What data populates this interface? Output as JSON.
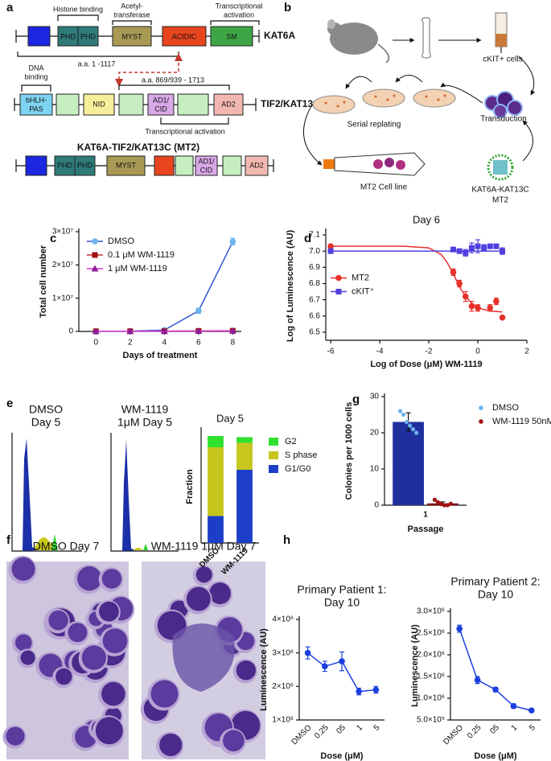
{
  "panel_labels": [
    "a",
    "b",
    "c",
    "d",
    "e",
    "f",
    "g",
    "h"
  ],
  "kat6a": {
    "name": "KAT6A",
    "domains": [
      "PHD",
      "PHD",
      "MYST",
      "ACIDIC",
      "SM"
    ],
    "histone": "Histone binding",
    "acetyl": [
      "Acetyl-",
      "transferase"
    ],
    "activation": [
      "Transcriptional",
      "activation"
    ],
    "range": "a.a. 1 -1117"
  },
  "tif2": {
    "name": "TIF2/KAT13C",
    "dna": [
      "DNA",
      "binding"
    ],
    "bhlh": [
      "bHLH-",
      "PAS"
    ],
    "nid": "NID",
    "ad1": [
      "AD1/",
      "CID"
    ],
    "ad2": "AD2",
    "range": "a.a. 869/939 - 1713",
    "activation": "Transcriptional activation"
  },
  "mt2": {
    "title": "KAT6A-TIF2/KAT13C  (MT2)",
    "domains": [
      "PHD",
      "PHD",
      "MYST"
    ],
    "ad1": [
      "AD1/",
      "CID"
    ],
    "ad2": "AD2"
  },
  "workflow": {
    "ckit": "cKIT+ cells",
    "serial": "Serial replating",
    "transduction": "Transduction",
    "cell_line": "MT2 Cell line",
    "construct": [
      "KAT6A-KAT13C",
      "MT2"
    ]
  },
  "flow": {
    "dmso": [
      "DMSO",
      "Day 5"
    ],
    "wm": [
      "WM-1119",
      "1μM Day 5"
    ]
  },
  "micrographs": {
    "dmso": "DMSO Day 7",
    "wm": "WM-1119 1μM Day 7"
  },
  "chart_data": [
    {
      "type": "line",
      "x_label": "Days of treatment",
      "y_label": "Total cell number",
      "x": [
        0,
        2,
        4,
        6,
        8
      ],
      "xlim": [
        -1,
        8.5
      ],
      "xticks": [
        0,
        2,
        4,
        6,
        8
      ],
      "ylim": [
        0,
        30000000
      ],
      "yticks": [
        0,
        {
          "value": 10000000,
          "label": "1×10⁷"
        },
        {
          "value": 20000000,
          "label": "2×10⁷"
        },
        {
          "value": 30000000,
          "label": "3×10⁷"
        }
      ],
      "legend": "upper left",
      "series": [
        {
          "name": "DMSO",
          "color": "#2f55d4",
          "marker_color": "#6db3ec",
          "marker": "circle",
          "values": [
            50000,
            100000,
            400000,
            6200000,
            27000000
          ],
          "errors": [
            0,
            0,
            0,
            800000,
            1000000
          ]
        },
        {
          "name": "0.1 μM WM-1119",
          "color": "#c0392b",
          "marker_color": "#a01010",
          "marker": "square",
          "values": [
            50000,
            60000,
            80000,
            150000,
            200000
          ]
        },
        {
          "name": "1 μM WM-1119",
          "color": "#d633d6",
          "marker_color": "#8e1e9e",
          "marker": "triangle",
          "values": [
            50000,
            50000,
            70000,
            120000,
            150000
          ]
        }
      ]
    },
    {
      "type": "scatter",
      "title": "Day 6",
      "x_label": "Log of Dose (μM) WM-1119",
      "y_label": "Log of Luminescence (AU)",
      "xlim": [
        -6.2,
        2
      ],
      "xticks": [
        -6,
        -4,
        -2,
        0,
        2
      ],
      "ylim": [
        6.45,
        7.12
      ],
      "yticks": [
        6.5,
        6.6,
        6.7,
        6.8,
        6.9,
        {
          "value": 7,
          "label": "7.0"
        },
        7.1
      ],
      "legend": "center left",
      "series": [
        {
          "name": "MT2",
          "color": "#e8302a",
          "marker": "circle",
          "x": [
            -6,
            -1,
            -0.75,
            -0.5,
            -0.25,
            0,
            0.5,
            0.75,
            1
          ],
          "values": [
            7.03,
            6.87,
            6.8,
            6.72,
            6.66,
            6.65,
            6.65,
            6.69,
            6.59
          ],
          "errors": [
            0,
            0.02,
            0.02,
            0.03,
            0.03,
            0.02,
            0.02,
            0.02,
            0
          ],
          "fit": {
            "x": [
              -6,
              -3,
              -2,
              -1.5,
              -1.25,
              -1,
              -0.75,
              -0.5,
              -0.25,
              0,
              0.5,
              1
            ],
            "values": [
              7.03,
              7.03,
              7.02,
              6.98,
              6.93,
              6.86,
              6.78,
              6.72,
              6.68,
              6.65,
              6.63,
              6.625
            ]
          }
        },
        {
          "name": "cKIT⁺",
          "color": "#5040e0",
          "marker": "square",
          "x": [
            -6,
            -1,
            -0.75,
            -0.5,
            -0.25,
            0,
            0.25,
            0.5,
            0.75,
            1
          ],
          "values": [
            7.0,
            7.01,
            7.0,
            6.99,
            7.02,
            7.03,
            7.02,
            7.03,
            7.03,
            7.0
          ],
          "errors": [
            0,
            0.01,
            0.01,
            0.02,
            0.03,
            0.04,
            0.02,
            0.01,
            0.01,
            0.02
          ],
          "fit": {
            "x": [
              -6,
              1
            ],
            "values": [
              7.0,
              7.0
            ]
          }
        }
      ]
    },
    {
      "type": "stacked_bar",
      "title": "Day 5",
      "y_label": "Fraction",
      "categories": [
        "DMSO",
        "WM-1119"
      ],
      "ylim": [
        0,
        100
      ],
      "legend": "right",
      "series": [
        {
          "name": "G1/G0",
          "color": "#1d3fc8",
          "values": [
            24,
            65
          ]
        },
        {
          "name": "S phase",
          "color": "#c6c61e",
          "values": [
            61,
            24
          ]
        },
        {
          "name": "G2",
          "color": "#2fe02f",
          "values": [
            10,
            5
          ]
        }
      ]
    },
    {
      "type": "bar",
      "x_label": "Passage",
      "y_label": "Colonies per 1000 cells",
      "categories": [
        "1"
      ],
      "ylim": [
        0,
        30
      ],
      "yticks": [
        0,
        10,
        20,
        30
      ],
      "legend": "right",
      "series": [
        {
          "name": "DMSO",
          "color": "#1f2f9e",
          "marker_color": "#6db3ec",
          "values": [
            23
          ],
          "errors": [
            2.5
          ],
          "points": [
            26,
            25,
            23,
            22,
            21,
            20
          ]
        },
        {
          "name": "WM-1119 50nM",
          "color": "#8b1010",
          "marker_color": "#a01010",
          "values": [
            0.5
          ],
          "errors": [
            0.4
          ],
          "points": [
            1.5,
            0.8,
            0.3,
            0,
            0,
            0.4
          ]
        }
      ]
    },
    {
      "type": "line",
      "title": [
        "Primary Patient 1:",
        "Day 10"
      ],
      "x_label": "Dose (μM)",
      "y_label": "Luminescence (AU)",
      "categories": [
        "DMSO",
        "0.25",
        "05",
        "1",
        "5"
      ],
      "ylim": [
        1000000,
        4000000
      ],
      "yticks": [
        {
          "value": 1000000,
          "label": "1×10⁶"
        },
        {
          "value": 2000000,
          "label": "2×10⁶"
        },
        {
          "value": 3000000,
          "label": "3×10⁶"
        },
        {
          "value": 4000000,
          "label": "4×10⁶"
        }
      ],
      "series": [
        {
          "color": "#1a3fe0",
          "marker_color": "#1a3fe0",
          "marker": "circle",
          "values": [
            3000000,
            2600000,
            2750000,
            1850000,
            1900000
          ],
          "errors": [
            180000,
            150000,
            280000,
            100000,
            100000
          ]
        }
      ]
    },
    {
      "type": "line",
      "title": [
        "Primary Patient 2:",
        "Day 10"
      ],
      "x_label": "Dose (μM)",
      "y_label": "Luminescence (AU)",
      "categories": [
        "DMSO",
        "0.25",
        "05",
        "1",
        "5"
      ],
      "ylim": [
        500000,
        3000000
      ],
      "yticks": [
        {
          "value": 500000,
          "label": "5.0×10⁵"
        },
        {
          "value": 1000000,
          "label": "1.0×10⁶"
        },
        {
          "value": 1500000,
          "label": "1.5×10⁶"
        },
        {
          "value": 2000000,
          "label": "2.0×10⁶"
        },
        {
          "value": 2500000,
          "label": "2.5×10⁶"
        },
        {
          "value": 3000000,
          "label": "3.0×10⁶"
        }
      ],
      "series": [
        {
          "color": "#1a3fe0",
          "marker_color": "#1a3fe0",
          "marker": "circle",
          "values": [
            2600000,
            1420000,
            1200000,
            820000,
            720000
          ],
          "errors": [
            80000,
            80000,
            50000,
            50000,
            20000
          ]
        }
      ]
    }
  ]
}
